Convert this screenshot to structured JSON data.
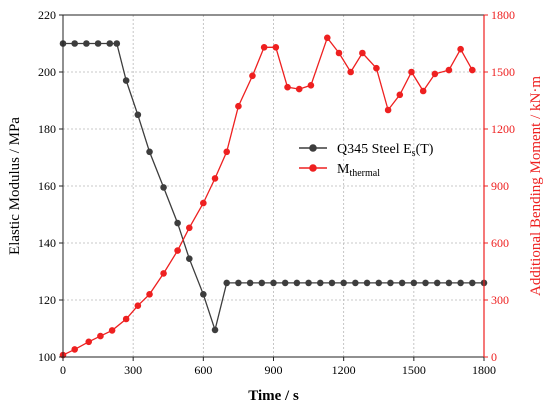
{
  "chart_data": {
    "type": "line",
    "xlabel": "Time / s",
    "ylabel_left": "Elastic Modulus / MPa",
    "ylabel_right": "Additional Bending Moment / kN·m",
    "xlim": [
      0,
      1800
    ],
    "ylim_left": [
      100,
      220
    ],
    "ylim_right": [
      0,
      1800
    ],
    "x_ticks": [
      0,
      300,
      600,
      900,
      1200,
      1500,
      1800
    ],
    "y_left_ticks": [
      100,
      120,
      140,
      160,
      180,
      200,
      220
    ],
    "y_right_ticks": [
      0,
      300,
      600,
      900,
      1200,
      1500,
      1800
    ],
    "x_tick_labels": [
      "0",
      "300",
      "600",
      "900",
      "1200",
      "1500",
      "1800"
    ],
    "y_left_tick_labels": [
      "100",
      "120",
      "140",
      "160",
      "180",
      "200",
      "220"
    ],
    "y_right_tick_labels": [
      "0",
      "300",
      "600",
      "900",
      "1200",
      "1500",
      "1800"
    ],
    "grid": true,
    "legend_position": "center-right",
    "colors": {
      "modulus": "#3d3d3d",
      "moment": "#ee2020",
      "grid": "#b8b8b8",
      "frame": "#222222"
    },
    "series": [
      {
        "name": "Q345 Steel Es(T)",
        "name_main": "Q345 Steel E",
        "name_sub": "s",
        "name_tail": "(T)",
        "axis": "left",
        "color": "#3d3d3d",
        "x": [
          0,
          50,
          100,
          150,
          200,
          230,
          270,
          320,
          370,
          430,
          490,
          540,
          600,
          650,
          700,
          750,
          800,
          850,
          900,
          950,
          1000,
          1050,
          1100,
          1150,
          1200,
          1250,
          1300,
          1350,
          1400,
          1450,
          1500,
          1550,
          1600,
          1650,
          1700,
          1750,
          1800
        ],
        "values": [
          210,
          210,
          210,
          210,
          210,
          210,
          197,
          185,
          172,
          159.5,
          147,
          134.5,
          122,
          109.5,
          126,
          126,
          126,
          126,
          126,
          126,
          126,
          126,
          126,
          126,
          126,
          126,
          126,
          126,
          126,
          126,
          126,
          126,
          126,
          126,
          126,
          126,
          126
        ]
      },
      {
        "name": "Mthermal",
        "name_main": "M",
        "name_sub": "thermal",
        "axis": "right",
        "color": "#ee2020",
        "x": [
          0,
          50,
          110,
          160,
          210,
          270,
          320,
          370,
          430,
          490,
          540,
          600,
          650,
          700,
          750,
          810,
          860,
          910,
          960,
          1010,
          1060,
          1130,
          1180,
          1230,
          1280,
          1340,
          1390,
          1440,
          1490,
          1540,
          1590,
          1650,
          1700,
          1750
        ],
        "values": [
          10,
          40,
          80,
          110,
          140,
          200,
          270,
          330,
          440,
          560,
          680,
          810,
          940,
          1080,
          1320,
          1480,
          1630,
          1630,
          1420,
          1410,
          1430,
          1680,
          1600,
          1500,
          1600,
          1520,
          1300,
          1380,
          1500,
          1400,
          1490,
          1510,
          1620,
          1510
        ]
      }
    ]
  }
}
